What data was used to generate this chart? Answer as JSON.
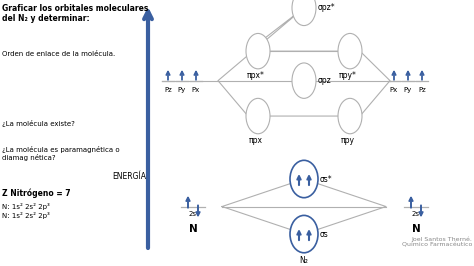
{
  "bg_color": "#ffffff",
  "gray": "#b0b0b0",
  "blue": "#3a5fa0",
  "title": "Graficar los orbitales moleculares\ndel N₂ y determinar:",
  "energia": "ENERGÍA",
  "credit": "Joel Santos Therné.\nQuímico Farmacéutico",
  "n2": "N₂",
  "sigma_pz_star": "σpz*",
  "pi_px_star": "πpx*",
  "pi_py_star": "πpy*",
  "sigma_pz": "σpz",
  "pi_px": "πpx",
  "pi_py": "πpy",
  "sigma_s_star": "σs*",
  "sigma_s": "σs",
  "left_Pz": "Pz",
  "left_Py": "Py",
  "left_Px": "Px",
  "right_Px": "Px",
  "right_Py": "Py",
  "right_Pz": "Pz",
  "left_2s": "2s",
  "right_2s": "2s",
  "left_N": "N",
  "right_N": "N",
  "note1": "Orden de enlace de la molécula.",
  "note2": "¿La molécula existe?",
  "note3": "¿La molécula es paramagnética o\ndiamag nética?",
  "note4": "Z Nitrógeno = 7",
  "note5": "N: 1s² 2s² 2p³",
  "note6": "N: 1s² 2s² 2p³"
}
